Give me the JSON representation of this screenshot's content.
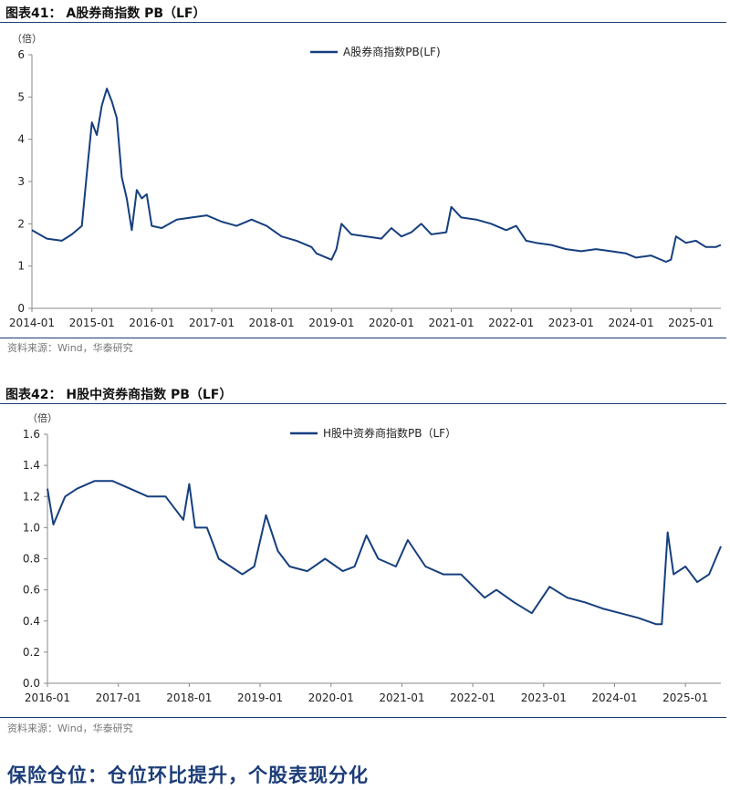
{
  "colors": {
    "series": "#163f7e",
    "accent": "#1b3c78",
    "axis": "#888888",
    "source": "#777777"
  },
  "section_heading": "保险仓位：仓位环比提升，个股表现分化",
  "charts": [
    {
      "title": "图表41：  A股券商指数 PB（LF）",
      "unit_label": "（倍）",
      "source": "资料来源：Wind，华泰研究"
    },
    {
      "title": "图表42：  H股中资券商指数 PB（LF）",
      "unit_label": "（倍）",
      "source": "资料来源：Wind，华泰研究"
    }
  ],
  "chart_data": [
    {
      "type": "line",
      "title": "A股券商指数 PB（LF）",
      "ylabel": "（倍）",
      "ylim": [
        0,
        6
      ],
      "yticks": [
        0,
        1,
        2,
        3,
        4,
        5,
        6
      ],
      "xlim": [
        "2014-01",
        "2025-07"
      ],
      "xticks": [
        "2014-01",
        "2015-01",
        "2016-01",
        "2017-01",
        "2018-01",
        "2019-01",
        "2020-01",
        "2021-01",
        "2022-01",
        "2023-01",
        "2024-01",
        "2025-01"
      ],
      "legend": "top-center",
      "grid": false,
      "series": [
        {
          "name": "A股券商指数PB(LF)",
          "x": [
            "2014-01",
            "2014-04",
            "2014-07",
            "2014-09",
            "2014-11",
            "2014-12",
            "2015-01",
            "2015-02",
            "2015-03",
            "2015-04",
            "2015-05",
            "2015-06",
            "2015-07",
            "2015-08",
            "2015-09",
            "2015-10",
            "2015-11",
            "2015-12",
            "2016-01",
            "2016-03",
            "2016-06",
            "2016-09",
            "2016-12",
            "2017-03",
            "2017-06",
            "2017-09",
            "2017-12",
            "2018-03",
            "2018-06",
            "2018-09",
            "2018-10",
            "2018-12",
            "2019-01",
            "2019-02",
            "2019-03",
            "2019-05",
            "2019-08",
            "2019-11",
            "2020-01",
            "2020-03",
            "2020-05",
            "2020-07",
            "2020-09",
            "2020-12",
            "2021-01",
            "2021-03",
            "2021-06",
            "2021-09",
            "2021-12",
            "2022-02",
            "2022-04",
            "2022-06",
            "2022-09",
            "2022-12",
            "2023-03",
            "2023-06",
            "2023-09",
            "2023-12",
            "2024-02",
            "2024-05",
            "2024-08",
            "2024-09",
            "2024-10",
            "2024-12",
            "2025-02",
            "2025-04",
            "2025-06",
            "2025-07"
          ],
          "values": [
            1.85,
            1.65,
            1.6,
            1.75,
            1.95,
            3.2,
            4.4,
            4.1,
            4.8,
            5.2,
            4.9,
            4.5,
            3.1,
            2.6,
            1.85,
            2.8,
            2.6,
            2.7,
            1.95,
            1.9,
            2.1,
            2.15,
            2.2,
            2.05,
            1.95,
            2.1,
            1.95,
            1.7,
            1.6,
            1.45,
            1.3,
            1.2,
            1.15,
            1.4,
            2.0,
            1.75,
            1.7,
            1.65,
            1.9,
            1.7,
            1.8,
            2.0,
            1.75,
            1.8,
            2.4,
            2.15,
            2.1,
            2.0,
            1.85,
            1.95,
            1.6,
            1.55,
            1.5,
            1.4,
            1.35,
            1.4,
            1.35,
            1.3,
            1.2,
            1.25,
            1.1,
            1.15,
            1.7,
            1.55,
            1.6,
            1.45,
            1.45,
            1.5
          ]
        }
      ]
    },
    {
      "type": "line",
      "title": "H股中资券商指数 PB（LF）",
      "ylabel": "（倍）",
      "ylim": [
        0,
        1.6
      ],
      "yticks": [
        0.0,
        0.2,
        0.4,
        0.6,
        0.8,
        1.0,
        1.2,
        1.4,
        1.6
      ],
      "xlim": [
        "2016-01",
        "2025-07"
      ],
      "xticks": [
        "2016-01",
        "2017-01",
        "2018-01",
        "2019-01",
        "2020-01",
        "2021-01",
        "2022-01",
        "2023-01",
        "2024-01",
        "2025-01"
      ],
      "legend": "top-center",
      "grid": false,
      "series": [
        {
          "name": "H股中资券商指数PB（LF）",
          "x": [
            "2016-01",
            "2016-02",
            "2016-04",
            "2016-06",
            "2016-09",
            "2016-12",
            "2017-03",
            "2017-06",
            "2017-09",
            "2017-12",
            "2018-01",
            "2018-02",
            "2018-04",
            "2018-06",
            "2018-08",
            "2018-10",
            "2018-12",
            "2019-02",
            "2019-04",
            "2019-06",
            "2019-09",
            "2019-12",
            "2020-03",
            "2020-05",
            "2020-07",
            "2020-09",
            "2020-12",
            "2021-02",
            "2021-05",
            "2021-08",
            "2021-11",
            "2022-03",
            "2022-05",
            "2022-08",
            "2022-11",
            "2023-02",
            "2023-05",
            "2023-08",
            "2023-11",
            "2024-02",
            "2024-05",
            "2024-08",
            "2024-09",
            "2024-10",
            "2024-11",
            "2025-01",
            "2025-03",
            "2025-05",
            "2025-07"
          ],
          "values": [
            1.25,
            1.02,
            1.2,
            1.25,
            1.3,
            1.3,
            1.25,
            1.2,
            1.2,
            1.05,
            1.28,
            1.0,
            1.0,
            0.8,
            0.75,
            0.7,
            0.75,
            1.08,
            0.85,
            0.75,
            0.72,
            0.8,
            0.72,
            0.75,
            0.95,
            0.8,
            0.75,
            0.92,
            0.75,
            0.7,
            0.7,
            0.55,
            0.6,
            0.52,
            0.45,
            0.62,
            0.55,
            0.52,
            0.48,
            0.45,
            0.42,
            0.38,
            0.38,
            0.97,
            0.7,
            0.75,
            0.65,
            0.7,
            0.88
          ]
        }
      ]
    }
  ]
}
